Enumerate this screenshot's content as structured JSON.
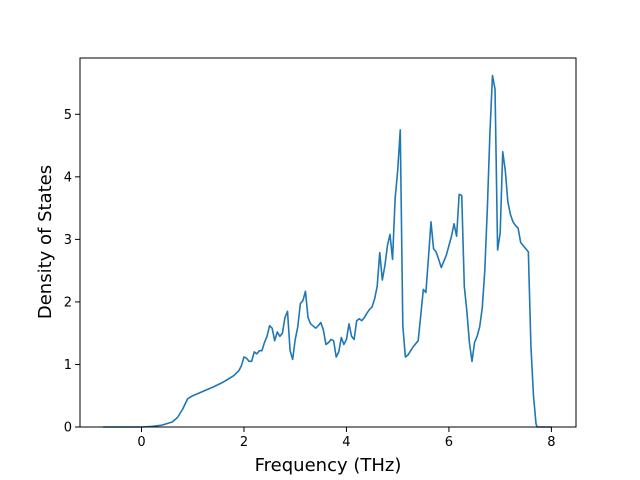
{
  "chart_data": {
    "type": "line",
    "title": "",
    "xlabel": "Frequency (THz)",
    "ylabel": "Density of States",
    "xlim": [
      -1.2,
      8.48
    ],
    "ylim": [
      0,
      5.9
    ],
    "xticks": [
      0,
      2,
      4,
      6,
      8
    ],
    "yticks": [
      0,
      1,
      2,
      3,
      4,
      5
    ],
    "grid": false,
    "legend": "none",
    "series": [
      {
        "color": "#1f77b4",
        "points": [
          [
            -0.75,
            0.0
          ],
          [
            0.0,
            0.0
          ],
          [
            0.2,
            0.01
          ],
          [
            0.4,
            0.03
          ],
          [
            0.6,
            0.08
          ],
          [
            0.7,
            0.15
          ],
          [
            0.8,
            0.28
          ],
          [
            0.9,
            0.45
          ],
          [
            1.0,
            0.5
          ],
          [
            1.2,
            0.57
          ],
          [
            1.4,
            0.64
          ],
          [
            1.6,
            0.72
          ],
          [
            1.8,
            0.82
          ],
          [
            1.9,
            0.9
          ],
          [
            1.95,
            0.98
          ],
          [
            2.0,
            1.12
          ],
          [
            2.05,
            1.1
          ],
          [
            2.1,
            1.05
          ],
          [
            2.15,
            1.05
          ],
          [
            2.2,
            1.2
          ],
          [
            2.25,
            1.17
          ],
          [
            2.3,
            1.22
          ],
          [
            2.35,
            1.22
          ],
          [
            2.4,
            1.35
          ],
          [
            2.45,
            1.45
          ],
          [
            2.5,
            1.62
          ],
          [
            2.55,
            1.58
          ],
          [
            2.6,
            1.38
          ],
          [
            2.65,
            1.52
          ],
          [
            2.7,
            1.45
          ],
          [
            2.75,
            1.5
          ],
          [
            2.8,
            1.75
          ],
          [
            2.85,
            1.85
          ],
          [
            2.9,
            1.22
          ],
          [
            2.95,
            1.08
          ],
          [
            3.0,
            1.4
          ],
          [
            3.05,
            1.6
          ],
          [
            3.1,
            1.97
          ],
          [
            3.15,
            2.02
          ],
          [
            3.2,
            2.17
          ],
          [
            3.25,
            1.75
          ],
          [
            3.3,
            1.65
          ],
          [
            3.4,
            1.58
          ],
          [
            3.45,
            1.62
          ],
          [
            3.5,
            1.67
          ],
          [
            3.55,
            1.55
          ],
          [
            3.6,
            1.32
          ],
          [
            3.65,
            1.35
          ],
          [
            3.7,
            1.4
          ],
          [
            3.75,
            1.38
          ],
          [
            3.8,
            1.12
          ],
          [
            3.85,
            1.2
          ],
          [
            3.9,
            1.43
          ],
          [
            3.95,
            1.32
          ],
          [
            4.0,
            1.4
          ],
          [
            4.05,
            1.65
          ],
          [
            4.1,
            1.45
          ],
          [
            4.15,
            1.4
          ],
          [
            4.2,
            1.7
          ],
          [
            4.25,
            1.73
          ],
          [
            4.3,
            1.7
          ],
          [
            4.35,
            1.75
          ],
          [
            4.4,
            1.82
          ],
          [
            4.45,
            1.88
          ],
          [
            4.5,
            1.92
          ],
          [
            4.55,
            2.05
          ],
          [
            4.6,
            2.25
          ],
          [
            4.65,
            2.79
          ],
          [
            4.7,
            2.35
          ],
          [
            4.75,
            2.58
          ],
          [
            4.8,
            2.9
          ],
          [
            4.85,
            3.08
          ],
          [
            4.9,
            2.68
          ],
          [
            4.95,
            3.65
          ],
          [
            5.0,
            4.1
          ],
          [
            5.05,
            4.75
          ],
          [
            5.1,
            1.62
          ],
          [
            5.15,
            1.12
          ],
          [
            5.2,
            1.15
          ],
          [
            5.3,
            1.28
          ],
          [
            5.4,
            1.38
          ],
          [
            5.45,
            1.78
          ],
          [
            5.5,
            2.2
          ],
          [
            5.55,
            2.15
          ],
          [
            5.6,
            2.7
          ],
          [
            5.65,
            3.28
          ],
          [
            5.7,
            2.85
          ],
          [
            5.75,
            2.8
          ],
          [
            5.8,
            2.68
          ],
          [
            5.85,
            2.55
          ],
          [
            5.9,
            2.65
          ],
          [
            5.95,
            2.75
          ],
          [
            6.0,
            2.9
          ],
          [
            6.05,
            3.05
          ],
          [
            6.1,
            3.25
          ],
          [
            6.15,
            3.05
          ],
          [
            6.2,
            3.72
          ],
          [
            6.25,
            3.7
          ],
          [
            6.3,
            2.25
          ],
          [
            6.35,
            1.85
          ],
          [
            6.4,
            1.35
          ],
          [
            6.45,
            1.05
          ],
          [
            6.5,
            1.35
          ],
          [
            6.55,
            1.45
          ],
          [
            6.6,
            1.6
          ],
          [
            6.65,
            1.9
          ],
          [
            6.7,
            2.5
          ],
          [
            6.75,
            3.5
          ],
          [
            6.8,
            4.7
          ],
          [
            6.85,
            5.62
          ],
          [
            6.9,
            5.4
          ],
          [
            6.95,
            2.83
          ],
          [
            7.0,
            3.1
          ],
          [
            7.05,
            4.4
          ],
          [
            7.1,
            4.1
          ],
          [
            7.15,
            3.6
          ],
          [
            7.2,
            3.4
          ],
          [
            7.25,
            3.28
          ],
          [
            7.3,
            3.22
          ],
          [
            7.35,
            3.18
          ],
          [
            7.4,
            2.95
          ],
          [
            7.45,
            2.9
          ],
          [
            7.5,
            2.85
          ],
          [
            7.55,
            2.8
          ],
          [
            7.6,
            1.3
          ],
          [
            7.65,
            0.5
          ],
          [
            7.7,
            0.05
          ],
          [
            7.72,
            0.0
          ],
          [
            8.0,
            0.0
          ]
        ]
      }
    ]
  }
}
